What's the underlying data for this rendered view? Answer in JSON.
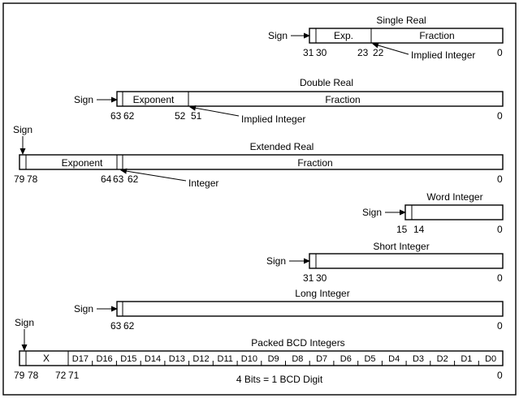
{
  "single_real": {
    "title": "Single Real",
    "sign": "Sign",
    "exp": "Exp.",
    "fraction": "Fraction",
    "implied": "Implied Integer",
    "bits": {
      "b31": "31",
      "b30": "30",
      "b23": "23",
      "b22": "22",
      "b0": "0"
    }
  },
  "double_real": {
    "title": "Double Real",
    "sign": "Sign",
    "exponent": "Exponent",
    "fraction": "Fraction",
    "implied": "Implied Integer",
    "bits": {
      "b63": "63",
      "b62": "62",
      "b52": "52",
      "b51": "51",
      "b0": "0"
    }
  },
  "extended_real": {
    "title": "Extended Real",
    "sign": "Sign",
    "exponent": "Exponent",
    "fraction": "Fraction",
    "integer": "Integer",
    "bits": {
      "b79": "79",
      "b78": "78",
      "b64": "64",
      "b63": "63",
      "b62": "62",
      "b0": "0"
    }
  },
  "word_integer": {
    "title": "Word Integer",
    "sign": "Sign",
    "bits": {
      "b15": "15",
      "b14": "14",
      "b0": "0"
    }
  },
  "short_integer": {
    "title": "Short Integer",
    "sign": "Sign",
    "bits": {
      "b31": "31",
      "b30": "30",
      "b0": "0"
    }
  },
  "long_integer": {
    "title": "Long Integer",
    "sign": "Sign",
    "bits": {
      "b63": "63",
      "b62": "62",
      "b0": "0"
    }
  },
  "packed_bcd": {
    "title": "Packed BCD Integers",
    "sign": "Sign",
    "x": "X",
    "digits": [
      "D17",
      "D16",
      "D15",
      "D14",
      "D13",
      "D12",
      "D11",
      "D10",
      "D9",
      "D8",
      "D7",
      "D6",
      "D5",
      "D4",
      "D3",
      "D2",
      "D1",
      "D0"
    ],
    "bits": {
      "b79": "79",
      "b78": "78",
      "b72": "72",
      "b71": "71",
      "b0": "0"
    },
    "note": "4 Bits = 1 BCD Digit"
  }
}
